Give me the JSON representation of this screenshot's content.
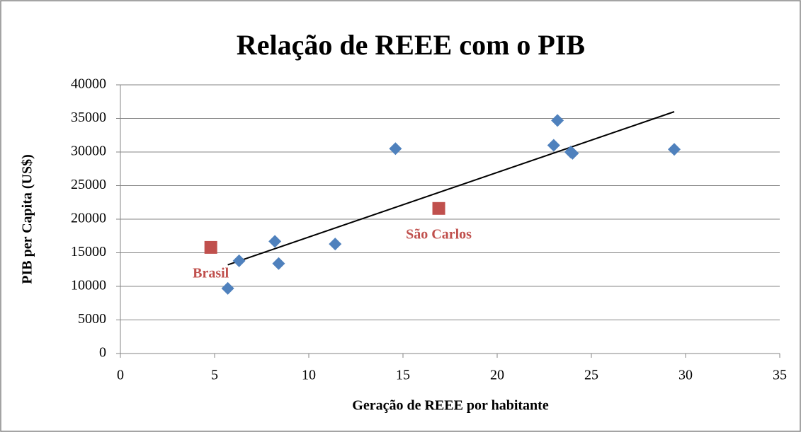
{
  "chart_data": {
    "type": "scatter",
    "title": "Relação de REEE com o PIB",
    "xlabel": "Geração de REEE por habitante",
    "ylabel": "PIB per Capita (US$)",
    "xlim": [
      0,
      35
    ],
    "xticks": [
      0,
      5,
      10,
      15,
      20,
      25,
      30,
      35
    ],
    "ylim": [
      0,
      40000
    ],
    "yticks": [
      0,
      5000,
      10000,
      15000,
      20000,
      25000,
      30000,
      35000,
      40000
    ],
    "grid": true,
    "series": [
      {
        "color": "#4f81bd",
        "marker": "diamond",
        "x": [
          5.7,
          6.3,
          8.2,
          8.4,
          11.4,
          14.6,
          23.0,
          23.2,
          23.9,
          24.0,
          29.4
        ],
        "values": [
          9700,
          13800,
          16700,
          13400,
          16300,
          30500,
          31000,
          34700,
          30000,
          29800,
          30400
        ]
      },
      {
        "color": "#c0504d",
        "marker": "square",
        "x": [
          4.8,
          16.9
        ],
        "values": [
          15800,
          21600
        ],
        "point_labels": [
          "Brasil",
          "São Carlos"
        ]
      }
    ],
    "trendline": {
      "color": "#000000",
      "x": [
        5.7,
        29.4
      ],
      "values": [
        13200,
        36000
      ]
    }
  }
}
